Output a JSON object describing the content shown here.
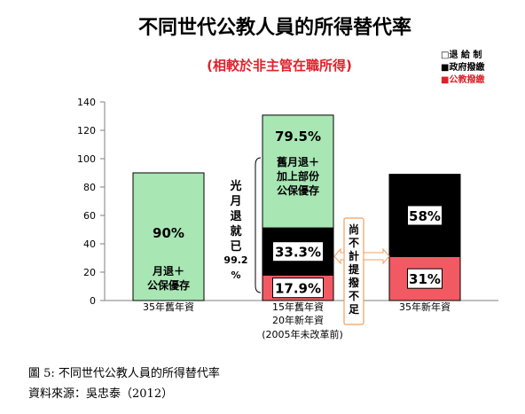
{
  "title": "不同世代公教人員的所得替代率",
  "subtitle": "(相較於非主管在職所得)",
  "legend": [
    {
      "label": "□退 給 制",
      "color": "#ffffff"
    },
    {
      "label": "■政府撥繳",
      "color": "#000000"
    },
    {
      "label": "■公教撥繳",
      "color": "#f25a63"
    }
  ],
  "chart_data": {
    "type": "bar",
    "stacked": true,
    "ylim": [
      0,
      140
    ],
    "yticks": [
      "0",
      "20",
      "40",
      "60",
      "80",
      "100",
      "120",
      "140"
    ],
    "grid": false,
    "categories": [
      "35年舊年資",
      "15年舊年資",
      "35年新年資"
    ],
    "category_sublabels": [
      "",
      "20年新年資",
      ""
    ],
    "category_note": "(2005年未改革前)",
    "segments": [
      {
        "category": 0,
        "start": 0,
        "value": 90,
        "color": "#a8e6b4",
        "label": "90%",
        "note": "月退＋\n公保優存"
      },
      {
        "category": 1,
        "start": 0,
        "value": 17.9,
        "color": "#f25a63",
        "label": "17.9%"
      },
      {
        "category": 1,
        "start": 17.9,
        "value": 33.3,
        "color": "#000000",
        "label": "33.3%"
      },
      {
        "category": 1,
        "start": 51.2,
        "value": 79.5,
        "color": "#a8e6b4",
        "label": "79.5%",
        "note": "舊月退＋\n加上部份\n公保優存"
      },
      {
        "category": 2,
        "start": 0,
        "value": 31,
        "color": "#f25a63",
        "label": "31%"
      },
      {
        "category": 2,
        "start": 31,
        "value": 58,
        "color": "#000000",
        "label": "58%"
      }
    ],
    "annotations": {
      "guangyue": "光月退就已",
      "guangyue_value": "99.2%",
      "buji": "尚不計提撥不足"
    }
  },
  "caption": {
    "figure": "圖 5: 不同世代公教人員的所得替代率",
    "source": "資料來源：吳忠泰（2012）"
  }
}
